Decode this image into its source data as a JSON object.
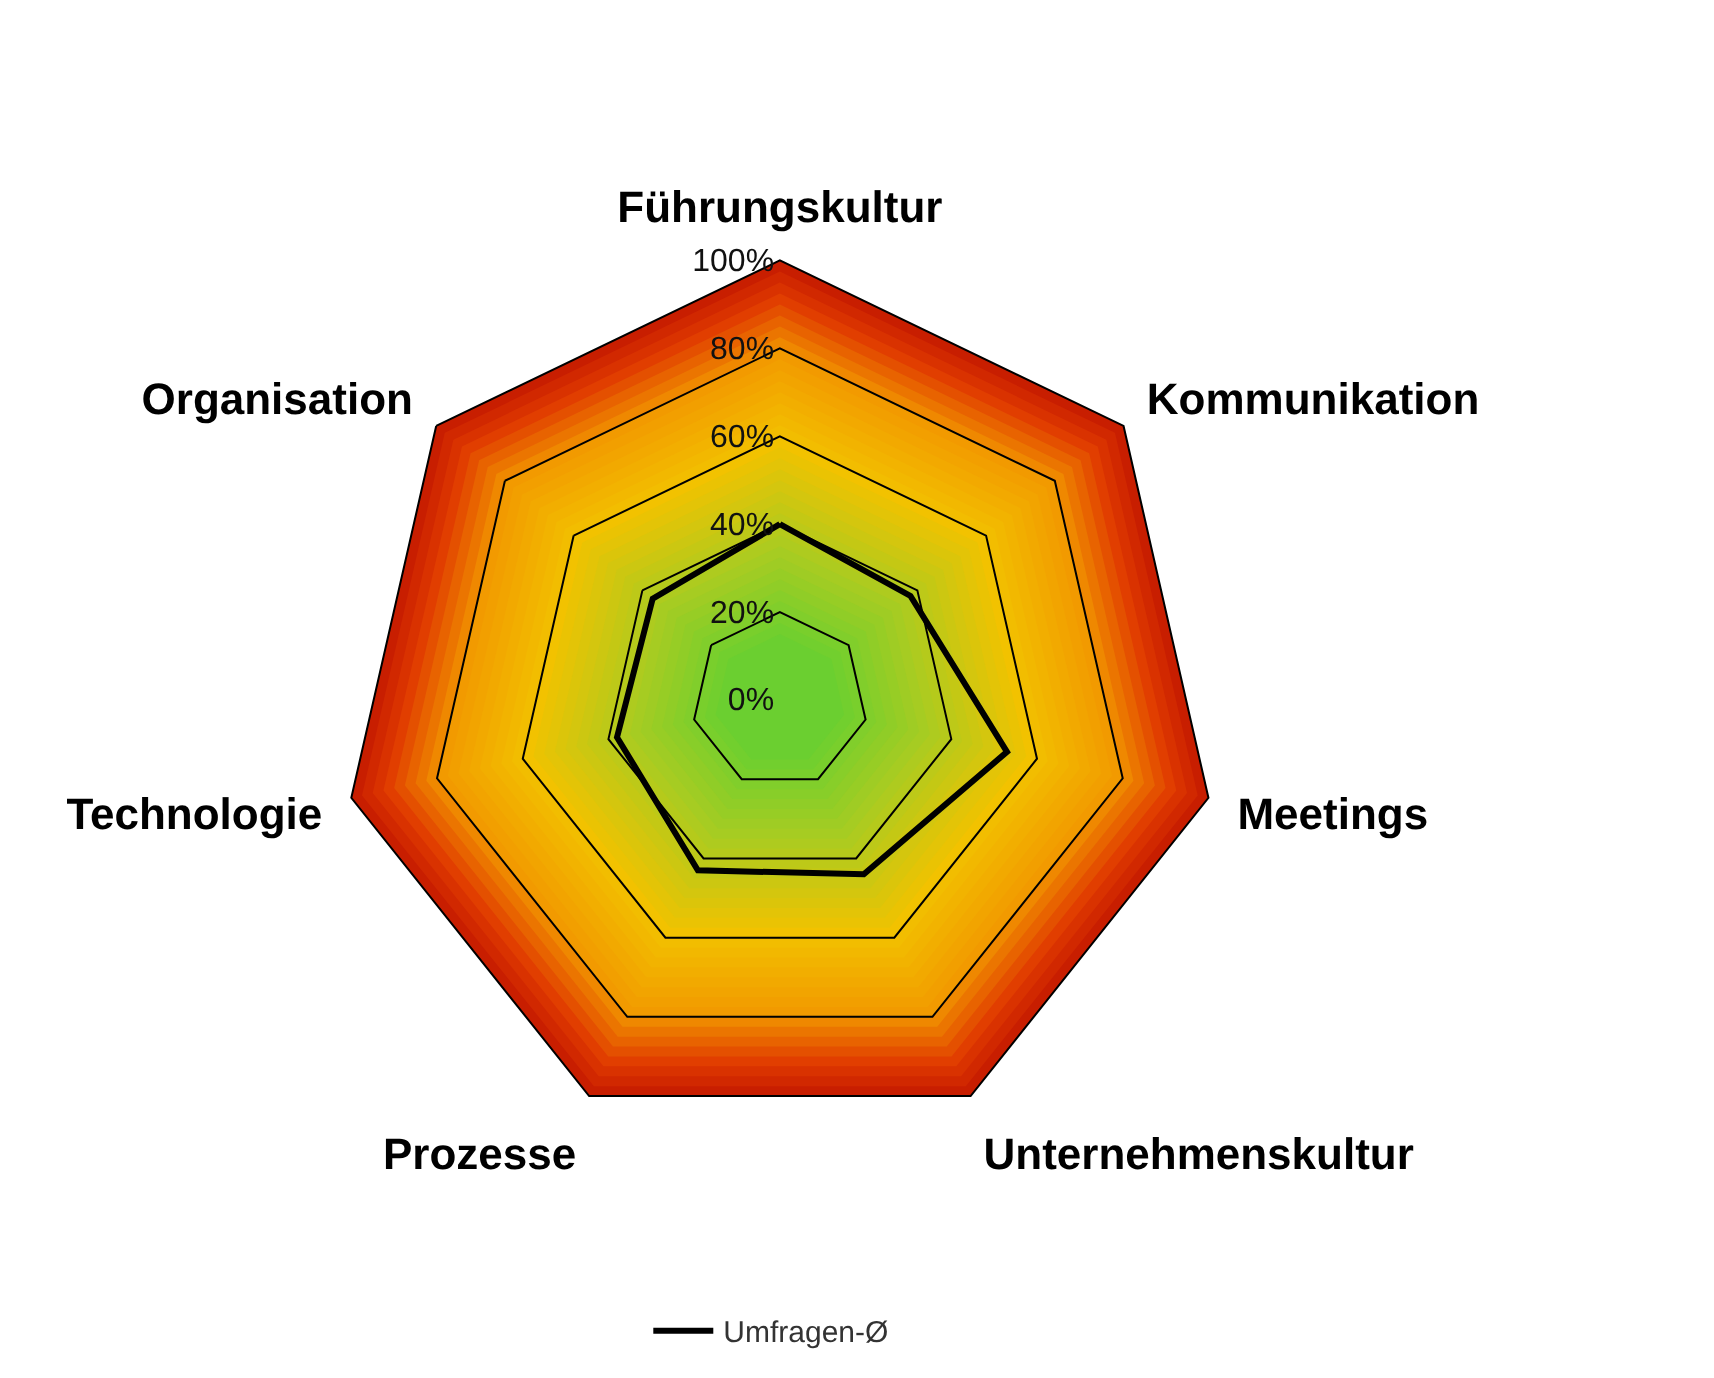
{
  "chart_data": {
    "type": "radar",
    "categories": [
      "Führungskultur",
      "Kommunikation",
      "Meetings",
      "Unternehmenskultur",
      "Prozesse",
      "Technologie",
      "Organisation"
    ],
    "series": [
      {
        "name": "Umfragen-Ø",
        "color": "#000000",
        "values": [
          40,
          38,
          53,
          44,
          43,
          38,
          37
        ]
      }
    ],
    "ylim": [
      0,
      100
    ],
    "yticks": [
      {
        "value": 0,
        "label": "0%"
      },
      {
        "value": 20,
        "label": "20%"
      },
      {
        "value": 40,
        "label": "40%"
      },
      {
        "value": 60,
        "label": "60%"
      },
      {
        "value": 80,
        "label": "80%"
      },
      {
        "value": 100,
        "label": "100%"
      }
    ],
    "grid": true,
    "legend": "bottom",
    "marker": "none",
    "line_style": "solid"
  }
}
